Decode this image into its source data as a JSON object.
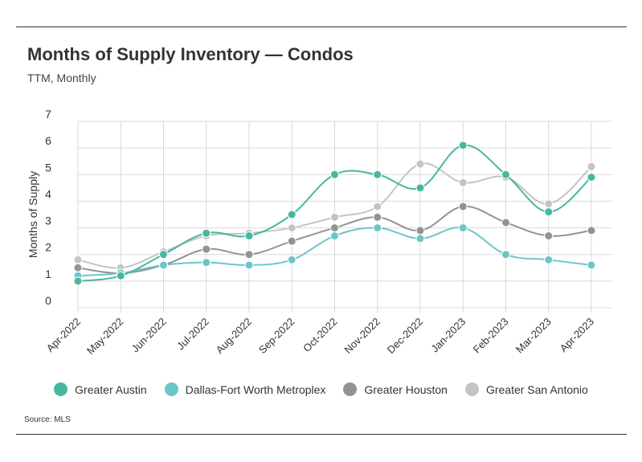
{
  "header": {
    "title": "Months of Supply Inventory — Condos",
    "subtitle": "TTM, Monthly"
  },
  "footer": {
    "source": "Source: MLS"
  },
  "chart_data": {
    "type": "line",
    "ylabel": "Months of Supply",
    "ylim": [
      0,
      7
    ],
    "yticks": [
      0,
      1,
      2,
      3,
      4,
      5,
      6,
      7
    ],
    "grid": true,
    "legend_position": "bottom",
    "categories": [
      "Apr-2022",
      "May-2022",
      "Jun-2022",
      "Jul-2022",
      "Aug-2022",
      "Sep-2022",
      "Oct-2022",
      "Nov-2022",
      "Dec-2022",
      "Jan-2023",
      "Feb-2023",
      "Mar-2023",
      "Apr-2023"
    ],
    "series": [
      {
        "name": "Greater Austin",
        "color": "#46b8a0",
        "values": [
          1.0,
          1.2,
          2.0,
          2.8,
          2.7,
          3.5,
          5.0,
          5.0,
          4.5,
          6.1,
          5.0,
          3.6,
          4.9
        ]
      },
      {
        "name": "Dallas-Fort Worth Metroplex",
        "color": "#6cc5cb",
        "values": [
          1.2,
          1.3,
          1.6,
          1.7,
          1.6,
          1.8,
          2.7,
          3.0,
          2.6,
          3.0,
          2.0,
          1.8,
          1.6
        ]
      },
      {
        "name": "Greater Houston",
        "color": "#939393",
        "values": [
          1.5,
          1.3,
          1.6,
          2.2,
          2.0,
          2.5,
          3.0,
          3.4,
          2.9,
          3.8,
          3.2,
          2.7,
          2.9
        ]
      },
      {
        "name": "Greater San Antonio",
        "color": "#c4c4c4",
        "values": [
          1.8,
          1.5,
          2.1,
          2.7,
          2.8,
          3.0,
          3.4,
          3.8,
          5.4,
          4.7,
          4.9,
          3.9,
          5.3
        ]
      }
    ]
  }
}
